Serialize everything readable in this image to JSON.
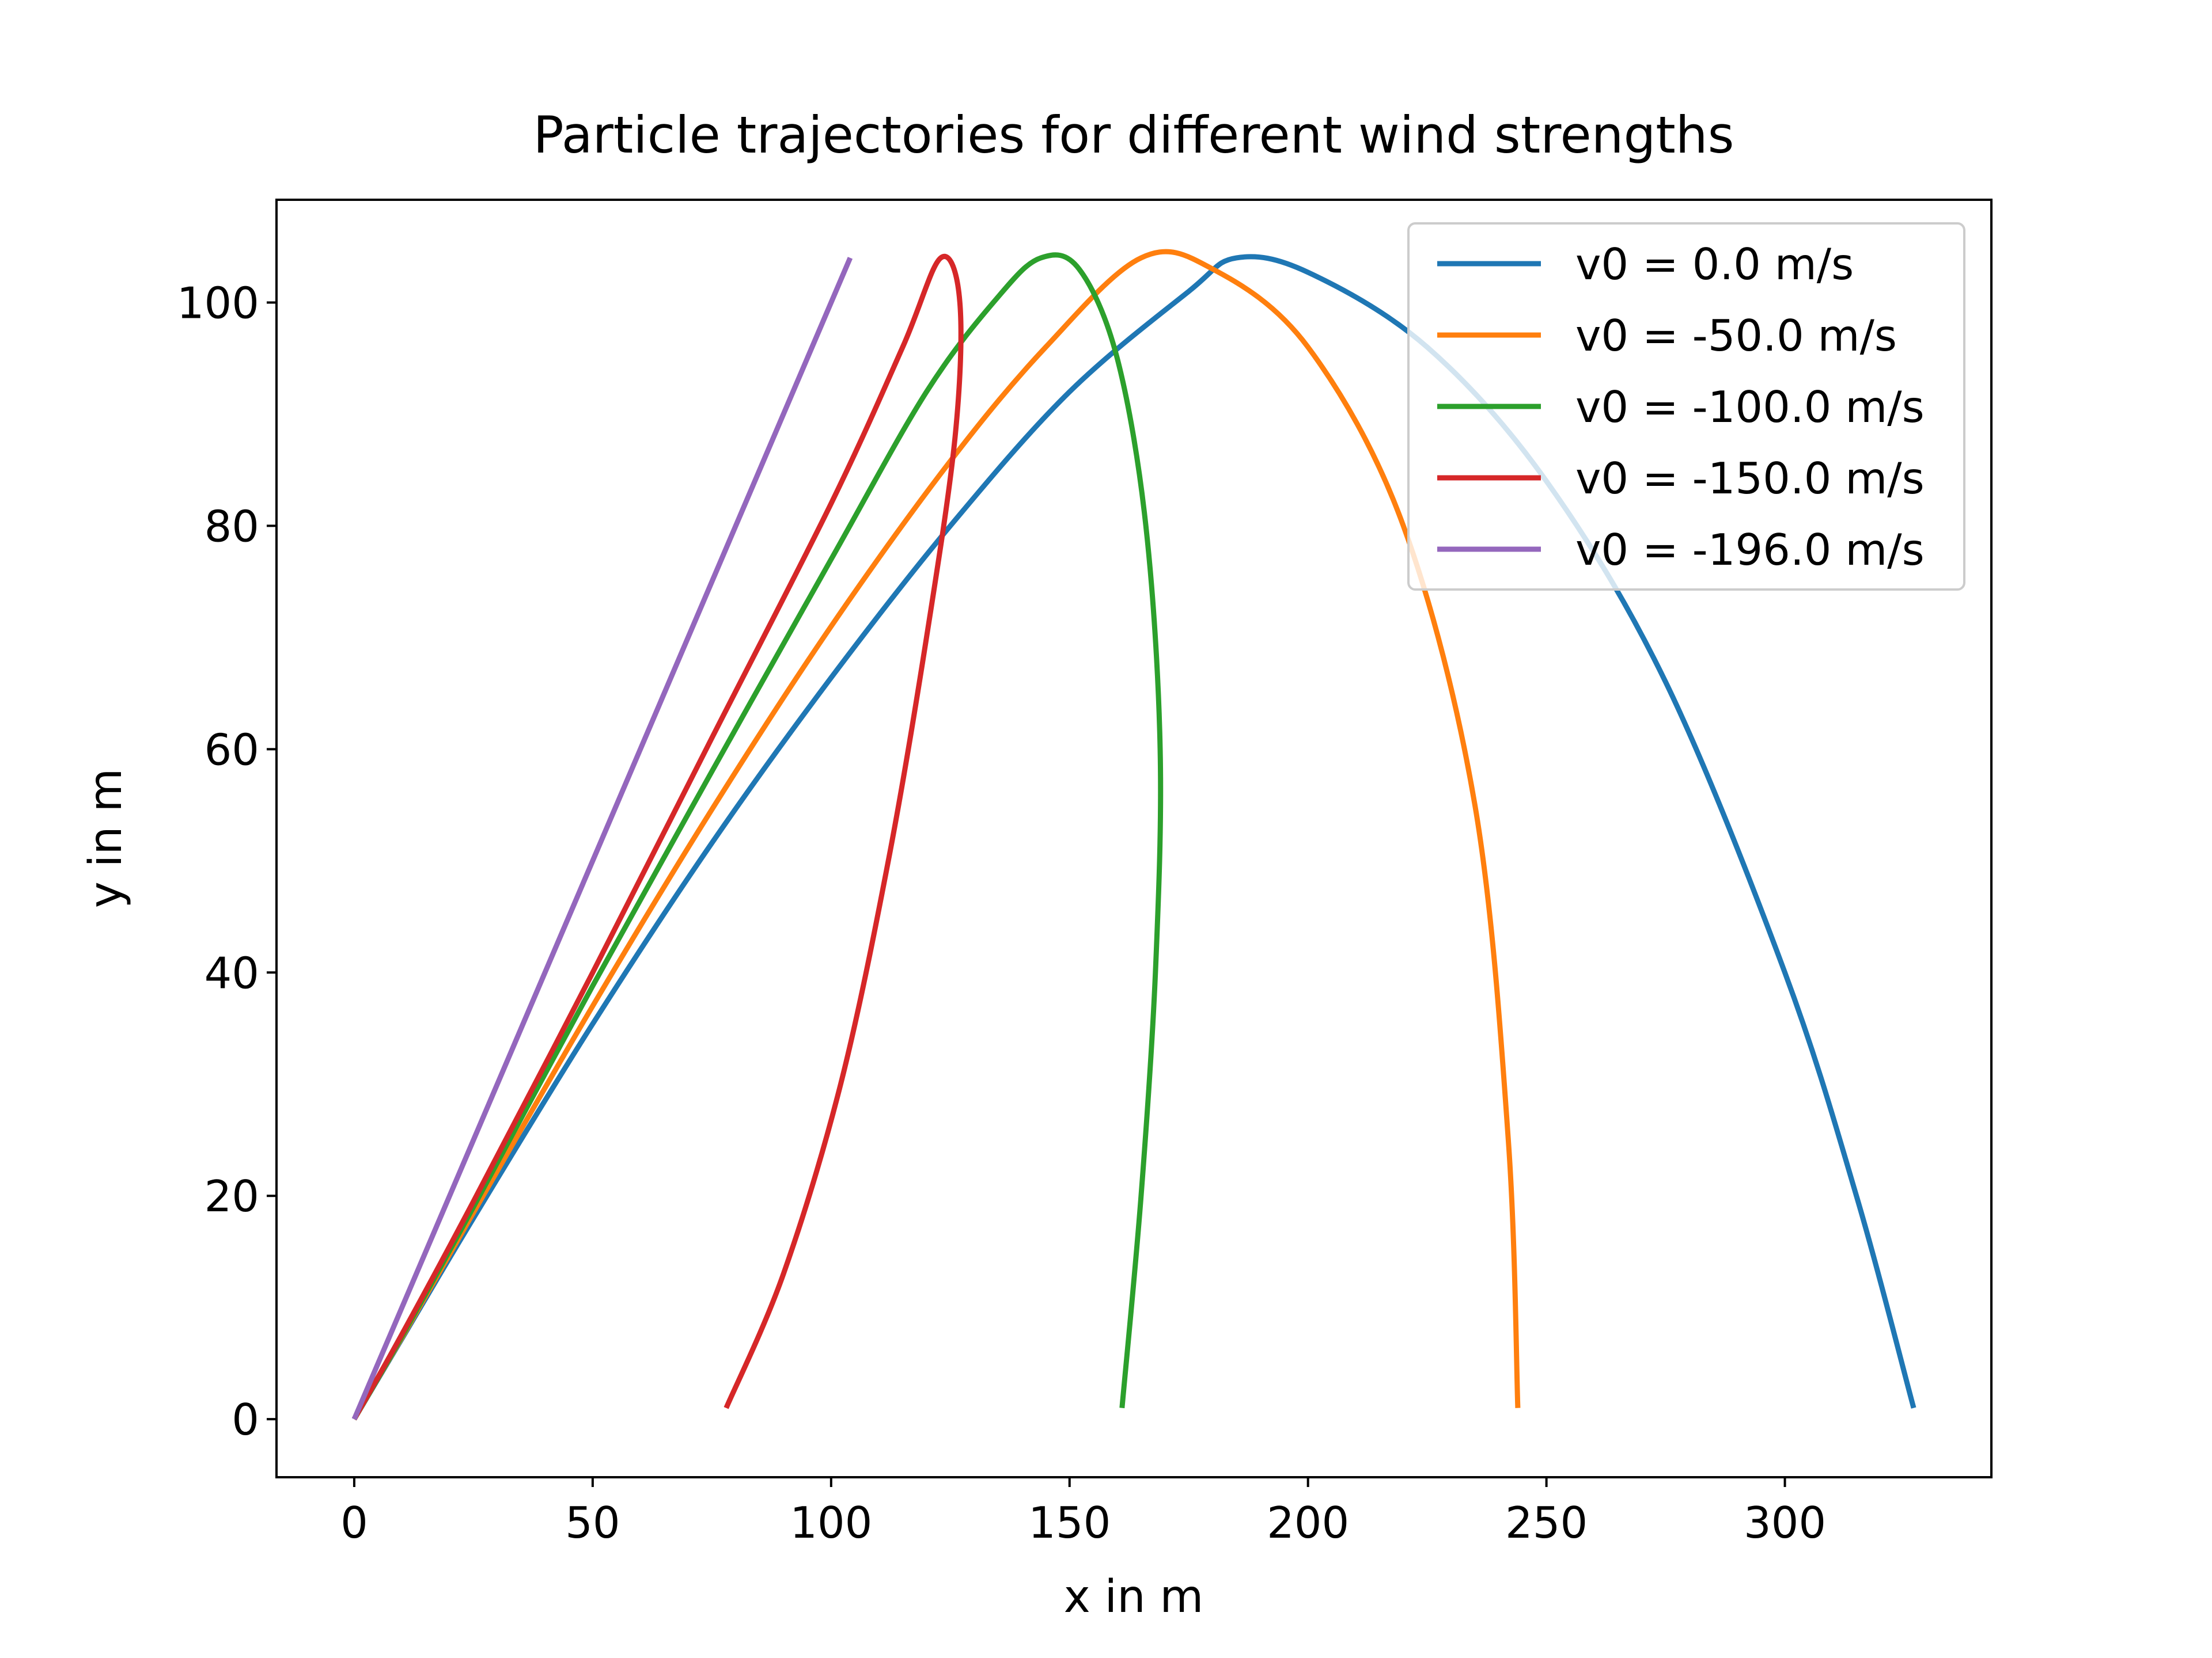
{
  "chart_data": {
    "type": "line",
    "title": "Particle trajectories for different wind strengths",
    "xlabel": "x in m",
    "ylabel": "y in m",
    "xlim": [
      -16.3,
      343.3
    ],
    "ylim": [
      -5.2,
      109.2
    ],
    "x_ticks": [
      0,
      50,
      100,
      150,
      200,
      250,
      300
    ],
    "y_ticks": [
      0,
      20,
      40,
      60,
      80,
      100
    ],
    "grid": false,
    "legend_position": "top-right",
    "series": [
      {
        "name": "v0 = 0.0 m/s",
        "color": "#1f77b4",
        "points": [
          [
            0,
            0
          ],
          [
            10,
            7.2
          ],
          [
            25,
            18.0
          ],
          [
            50,
            35.4
          ],
          [
            75,
            51.6
          ],
          [
            100,
            66.4
          ],
          [
            125,
            80.0
          ],
          [
            150,
            92.0
          ],
          [
            175,
            101.0
          ],
          [
            185,
            104.0
          ],
          [
            200,
            102.7
          ],
          [
            225,
            96.0
          ],
          [
            250,
            84.0
          ],
          [
            275,
            66.0
          ],
          [
            300,
            40.0
          ],
          [
            315,
            20.0
          ],
          [
            327,
            1.0
          ]
        ]
      },
      {
        "name": "v0 = -50.0 m/s",
        "color": "#ff7f0e",
        "points": [
          [
            0,
            0
          ],
          [
            10,
            7.3
          ],
          [
            25,
            18.5
          ],
          [
            50,
            37.0
          ],
          [
            75,
            54.6
          ],
          [
            100,
            71.0
          ],
          [
            125,
            85.8
          ],
          [
            145,
            96.0
          ],
          [
            165,
            104.0
          ],
          [
            180,
            103.0
          ],
          [
            200,
            96.0
          ],
          [
            220,
            80.0
          ],
          [
            235,
            55.0
          ],
          [
            242,
            25.0
          ],
          [
            244,
            1.0
          ]
        ]
      },
      {
        "name": "v0 = -100.0 m/s",
        "color": "#2ca02c",
        "points": [
          [
            0,
            0
          ],
          [
            10,
            7.4
          ],
          [
            25,
            19.0
          ],
          [
            50,
            38.8
          ],
          [
            75,
            58.0
          ],
          [
            100,
            77.0
          ],
          [
            120,
            92.0
          ],
          [
            135,
            100.5
          ],
          [
            144,
            104.0
          ],
          [
            152,
            103.0
          ],
          [
            160,
            95.0
          ],
          [
            166,
            80.0
          ],
          [
            169,
            60.0
          ],
          [
            168,
            40.0
          ],
          [
            165,
            20.0
          ],
          [
            161,
            1.0
          ]
        ]
      },
      {
        "name": "v0 = -150.0 m/s",
        "color": "#d62728",
        "points": [
          [
            0,
            0
          ],
          [
            10,
            7.6
          ],
          [
            25,
            19.5
          ],
          [
            50,
            40.0
          ],
          [
            75,
            61.0
          ],
          [
            100,
            82.0
          ],
          [
            115,
            96.0
          ],
          [
            123,
            104.0
          ],
          [
            127,
            100.0
          ],
          [
            126,
            88.0
          ],
          [
            120,
            70.0
          ],
          [
            112,
            50.0
          ],
          [
            102,
            30.0
          ],
          [
            90,
            13.0
          ],
          [
            78,
            1.0
          ]
        ]
      },
      {
        "name": "v0 = -196.0 m/s",
        "color": "#9467bd",
        "points": [
          [
            0,
            0
          ],
          [
            104,
            104
          ]
        ]
      }
    ]
  }
}
